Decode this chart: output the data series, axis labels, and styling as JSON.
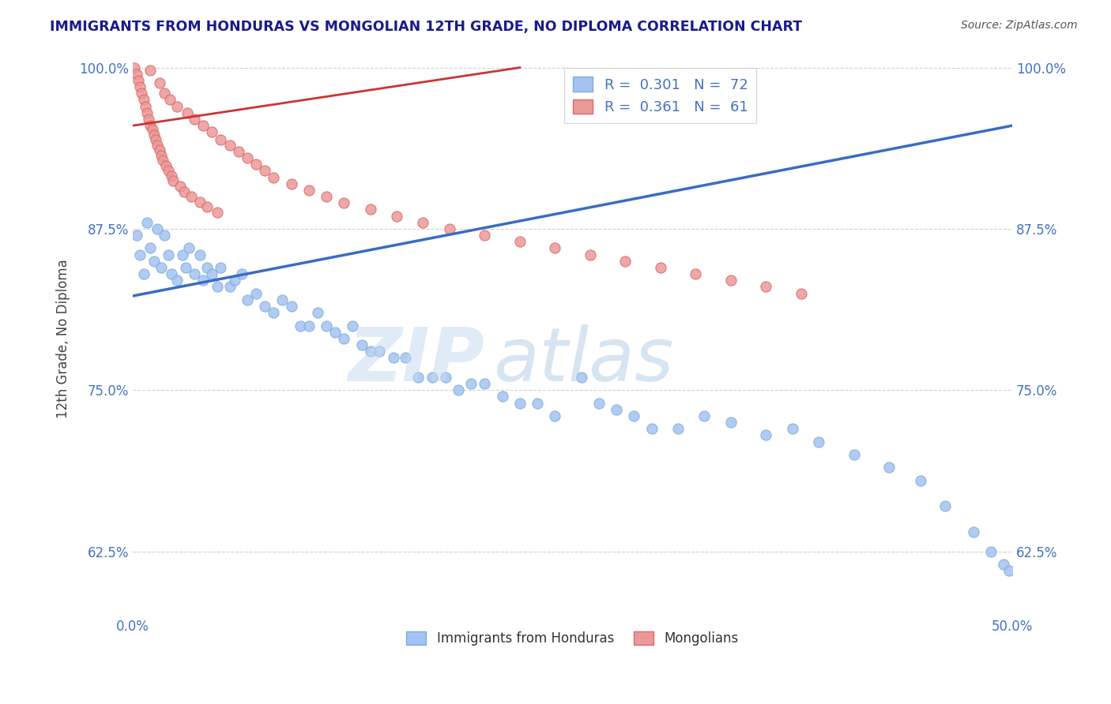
{
  "title": "IMMIGRANTS FROM HONDURAS VS MONGOLIAN 12TH GRADE, NO DIPLOMA CORRELATION CHART",
  "source": "Source: ZipAtlas.com",
  "ylabel": "12th Grade, No Diploma",
  "xlim": [
    0.0,
    0.5
  ],
  "ylim": [
    0.575,
    1.005
  ],
  "ytick_labels": [
    "62.5%",
    "75.0%",
    "87.5%",
    "100.0%"
  ],
  "ytick_values": [
    0.625,
    0.75,
    0.875,
    1.0
  ],
  "xtick_labels": [
    "0.0%",
    "50.0%"
  ],
  "xtick_values": [
    0.0,
    0.5
  ],
  "grid_color": "#cccccc",
  "background_color": "#ffffff",
  "legend_R1": "0.301",
  "legend_N1": "72",
  "legend_R2": "0.361",
  "legend_N2": "61",
  "blue_color": "#a4c2f4",
  "pink_color": "#ea9999",
  "line_blue": "#3a6cc4",
  "title_color": "#1a1a8c",
  "axis_color": "#4472c4",
  "honduras_x": [
    0.002,
    0.004,
    0.006,
    0.008,
    0.01,
    0.012,
    0.014,
    0.016,
    0.018,
    0.02,
    0.022,
    0.025,
    0.028,
    0.03,
    0.032,
    0.035,
    0.038,
    0.04,
    0.042,
    0.045,
    0.048,
    0.05,
    0.055,
    0.058,
    0.062,
    0.065,
    0.07,
    0.075,
    0.08,
    0.085,
    0.09,
    0.095,
    0.1,
    0.105,
    0.11,
    0.115,
    0.12,
    0.125,
    0.13,
    0.135,
    0.14,
    0.148,
    0.155,
    0.162,
    0.17,
    0.178,
    0.185,
    0.192,
    0.2,
    0.21,
    0.22,
    0.23,
    0.24,
    0.255,
    0.265,
    0.275,
    0.285,
    0.295,
    0.31,
    0.325,
    0.34,
    0.36,
    0.375,
    0.39,
    0.41,
    0.43,
    0.448,
    0.462,
    0.478,
    0.488,
    0.495,
    0.498
  ],
  "honduras_y": [
    0.87,
    0.855,
    0.84,
    0.88,
    0.86,
    0.85,
    0.875,
    0.845,
    0.87,
    0.855,
    0.84,
    0.835,
    0.855,
    0.845,
    0.86,
    0.84,
    0.855,
    0.835,
    0.845,
    0.84,
    0.83,
    0.845,
    0.83,
    0.835,
    0.84,
    0.82,
    0.825,
    0.815,
    0.81,
    0.82,
    0.815,
    0.8,
    0.8,
    0.81,
    0.8,
    0.795,
    0.79,
    0.8,
    0.785,
    0.78,
    0.78,
    0.775,
    0.775,
    0.76,
    0.76,
    0.76,
    0.75,
    0.755,
    0.755,
    0.745,
    0.74,
    0.74,
    0.73,
    0.76,
    0.74,
    0.735,
    0.73,
    0.72,
    0.72,
    0.73,
    0.725,
    0.715,
    0.72,
    0.71,
    0.7,
    0.69,
    0.68,
    0.66,
    0.64,
    0.625,
    0.615,
    0.61
  ],
  "mongolian_x": [
    0.001,
    0.002,
    0.003,
    0.004,
    0.005,
    0.006,
    0.007,
    0.008,
    0.009,
    0.01,
    0.01,
    0.011,
    0.012,
    0.013,
    0.014,
    0.015,
    0.015,
    0.016,
    0.017,
    0.018,
    0.019,
    0.02,
    0.021,
    0.022,
    0.023,
    0.025,
    0.027,
    0.029,
    0.031,
    0.033,
    0.035,
    0.038,
    0.04,
    0.042,
    0.045,
    0.048,
    0.05,
    0.055,
    0.06,
    0.065,
    0.07,
    0.075,
    0.08,
    0.09,
    0.1,
    0.11,
    0.12,
    0.135,
    0.15,
    0.165,
    0.18,
    0.2,
    0.22,
    0.24,
    0.26,
    0.28,
    0.3,
    0.32,
    0.34,
    0.36,
    0.38
  ],
  "mongolian_y": [
    1.0,
    0.995,
    0.99,
    0.985,
    0.98,
    0.975,
    0.97,
    0.965,
    0.96,
    0.955,
    0.998,
    0.952,
    0.948,
    0.944,
    0.94,
    0.988,
    0.936,
    0.932,
    0.928,
    0.98,
    0.924,
    0.92,
    0.975,
    0.916,
    0.912,
    0.97,
    0.908,
    0.904,
    0.965,
    0.9,
    0.96,
    0.896,
    0.955,
    0.892,
    0.95,
    0.888,
    0.944,
    0.94,
    0.935,
    0.93,
    0.925,
    0.92,
    0.915,
    0.91,
    0.905,
    0.9,
    0.895,
    0.89,
    0.885,
    0.88,
    0.875,
    0.87,
    0.865,
    0.86,
    0.855,
    0.85,
    0.845,
    0.84,
    0.835,
    0.83,
    0.825
  ],
  "blue_line_x": [
    0.0,
    0.5
  ],
  "blue_line_y": [
    0.823,
    0.955
  ],
  "pink_line_x": [
    0.0,
    0.22
  ],
  "pink_line_y": [
    0.955,
    1.0
  ]
}
